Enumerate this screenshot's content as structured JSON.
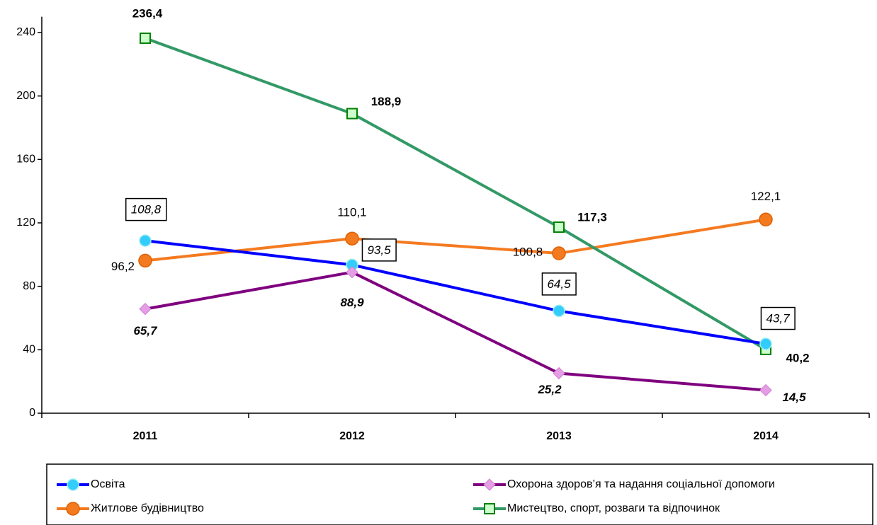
{
  "chart_data": {
    "type": "line",
    "categories": [
      "2011",
      "2012",
      "2013",
      "2014"
    ],
    "ylim": [
      0,
      250
    ],
    "yticks": [
      0,
      40,
      80,
      120,
      160,
      200,
      240
    ],
    "legend": "bottom",
    "series": [
      {
        "name": "Освіта",
        "color": "#0000ff",
        "marker_color": "#33ccff",
        "values": [
          108.8,
          93.5,
          64.5,
          43.7
        ],
        "value_labels": [
          "108,8",
          "93,5",
          "64,5",
          "43,7"
        ]
      },
      {
        "name": "Житлове будівництво",
        "color": "#f47a20",
        "marker_color": "#f47a20",
        "values": [
          96.2,
          110.1,
          100.8,
          122.1
        ],
        "value_labels": [
          "96,2",
          "110,1",
          "100,8",
          "122,1"
        ]
      },
      {
        "name": "Охорона здоров’я та надання соціальної допомоги",
        "color": "#7f007f",
        "marker_color": "#e59ee5",
        "values": [
          65.7,
          88.9,
          25.2,
          14.5
        ],
        "value_labels": [
          "65,7",
          "88,9",
          "25,2",
          "14,5"
        ]
      },
      {
        "name": "Мистецтво, спорт, розваги та відпочинок",
        "color": "#339966",
        "marker_color": "#ccffcc",
        "values": [
          236.4,
          188.9,
          117.3,
          40.2
        ],
        "value_labels": [
          "236,4",
          "188,9",
          "117,3",
          "40,2"
        ]
      }
    ]
  }
}
